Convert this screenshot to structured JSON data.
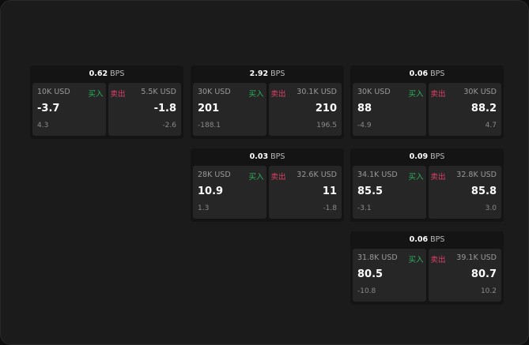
{
  "unit": "BPS",
  "buy_label": "买入",
  "sell_label": "卖出",
  "colors": {
    "buy": "#2db35d",
    "sell": "#e0406a"
  },
  "cards": [
    {
      "spread": "0.62",
      "bid": {
        "qty": "10K USD",
        "price": "-3.7",
        "change": "4.3"
      },
      "ask": {
        "qty": "5.5K USD",
        "price": "-1.8",
        "change": "-2.6"
      }
    },
    {
      "spread": "2.92",
      "bid": {
        "qty": "30K USD",
        "price": "201",
        "change": "-188.1"
      },
      "ask": {
        "qty": "30.1K USD",
        "price": "210",
        "change": "196.5"
      }
    },
    {
      "spread": "0.06",
      "bid": {
        "qty": "30K USD",
        "price": "88",
        "change": "-4.9"
      },
      "ask": {
        "qty": "30K USD",
        "price": "88.2",
        "change": "4.7"
      }
    },
    {
      "spread": "0.03",
      "bid": {
        "qty": "28K USD",
        "price": "10.9",
        "change": "1.3"
      },
      "ask": {
        "qty": "32.6K USD",
        "price": "11",
        "change": "-1.8"
      }
    },
    {
      "spread": "0.09",
      "bid": {
        "qty": "34.1K USD",
        "price": "85.5",
        "change": "-3.1"
      },
      "ask": {
        "qty": "32.8K USD",
        "price": "85.8",
        "change": "3.0"
      }
    },
    {
      "spread": "0.06",
      "bid": {
        "qty": "31.8K USD",
        "price": "80.5",
        "change": "-10.8"
      },
      "ask": {
        "qty": "39.1K USD",
        "price": "80.7",
        "change": "10.2"
      }
    }
  ]
}
